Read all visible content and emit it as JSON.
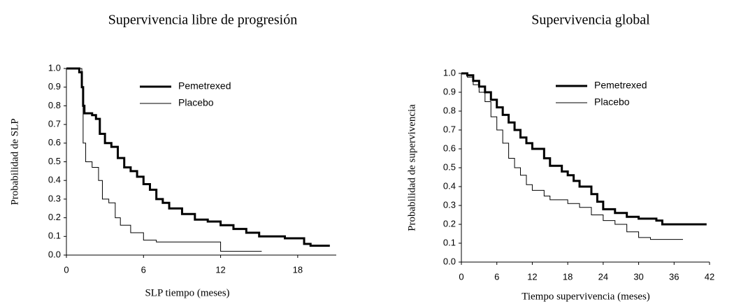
{
  "chart_data": [
    {
      "type": "line",
      "drawstyle": "steps-post",
      "title": "Supervivencia libre de progresión",
      "x_label": "SLP tiempo (meses)",
      "y_label": "Probabilidad de SLP",
      "xlim": [
        0,
        21
      ],
      "xticks": [
        0,
        6,
        12,
        18
      ],
      "ylim": [
        0,
        1
      ],
      "yticks": [
        {
          "value": 0,
          "label": "0.0"
        },
        0.1,
        0.2,
        0.3,
        0.4,
        0.5,
        0.6,
        0.7,
        0.8,
        0.9,
        {
          "value": 1,
          "label": "1.0"
        }
      ],
      "legend": true,
      "series": [
        {
          "name": "Pemetrexed",
          "color": "#000000",
          "linewidth": 3,
          "x": [
            0,
            1.0,
            1.2,
            1.3,
            1.4,
            2.0,
            2.3,
            2.6,
            3.0,
            3.5,
            4.0,
            4.5,
            5.0,
            5.5,
            6.0,
            6.5,
            7.0,
            7.5,
            8.0,
            9.0,
            10.0,
            11.0,
            12.0,
            13.0,
            14.0,
            15.0,
            17.0,
            18.5,
            19.0,
            20.5
          ],
          "values": [
            1.0,
            0.98,
            0.9,
            0.8,
            0.76,
            0.75,
            0.73,
            0.65,
            0.6,
            0.58,
            0.52,
            0.47,
            0.45,
            0.42,
            0.38,
            0.35,
            0.3,
            0.28,
            0.25,
            0.22,
            0.19,
            0.18,
            0.16,
            0.14,
            0.12,
            0.1,
            0.09,
            0.06,
            0.05,
            0.05
          ]
        },
        {
          "name": "Placebo",
          "color": "#000000",
          "linewidth": 1,
          "x": [
            0,
            1.2,
            1.3,
            1.5,
            2.0,
            2.5,
            2.8,
            3.3,
            3.8,
            4.2,
            5.0,
            6.0,
            7.0,
            10.0,
            12.0,
            15.2
          ],
          "values": [
            1.0,
            0.9,
            0.6,
            0.5,
            0.47,
            0.4,
            0.3,
            0.28,
            0.2,
            0.16,
            0.12,
            0.08,
            0.07,
            0.07,
            0.02,
            0.02
          ]
        }
      ]
    },
    {
      "type": "line",
      "drawstyle": "steps-post",
      "title": "Supervivencia global",
      "x_label": "Tiempo supervivencia (meses)",
      "y_label": "Probabilidad de supervivencia",
      "xlim": [
        0,
        42
      ],
      "xticks": [
        0,
        6,
        12,
        18,
        24,
        30,
        36,
        42
      ],
      "ylim": [
        0,
        1
      ],
      "yticks": [
        {
          "value": 0,
          "label": "0.0"
        },
        0.1,
        0.2,
        0.3,
        0.4,
        0.5,
        0.6,
        0.7,
        0.8,
        0.9,
        {
          "value": 1,
          "label": "1.0"
        }
      ],
      "legend": true,
      "series": [
        {
          "name": "Pemetrexed",
          "color": "#000000",
          "linewidth": 3,
          "x": [
            0,
            1,
            2,
            3,
            4,
            5,
            6,
            7,
            8,
            9,
            10,
            11,
            12,
            14,
            15,
            17,
            18,
            19,
            20,
            22,
            23,
            24,
            26,
            28,
            30,
            33,
            34,
            41.5
          ],
          "values": [
            1.0,
            0.99,
            0.96,
            0.93,
            0.9,
            0.86,
            0.82,
            0.78,
            0.74,
            0.7,
            0.66,
            0.63,
            0.6,
            0.55,
            0.51,
            0.48,
            0.46,
            0.43,
            0.4,
            0.36,
            0.32,
            0.28,
            0.26,
            0.24,
            0.23,
            0.22,
            0.2,
            0.2
          ]
        },
        {
          "name": "Placebo",
          "color": "#000000",
          "linewidth": 1,
          "x": [
            0,
            1,
            2,
            3,
            4,
            5,
            6,
            7,
            8,
            9,
            10,
            11,
            12,
            14,
            15,
            18,
            20,
            22,
            24,
            26,
            28,
            30,
            32,
            37.5
          ],
          "values": [
            1.0,
            0.98,
            0.94,
            0.9,
            0.85,
            0.77,
            0.7,
            0.63,
            0.55,
            0.5,
            0.46,
            0.41,
            0.38,
            0.35,
            0.33,
            0.31,
            0.29,
            0.25,
            0.22,
            0.2,
            0.16,
            0.13,
            0.12,
            0.12
          ]
        }
      ]
    }
  ]
}
